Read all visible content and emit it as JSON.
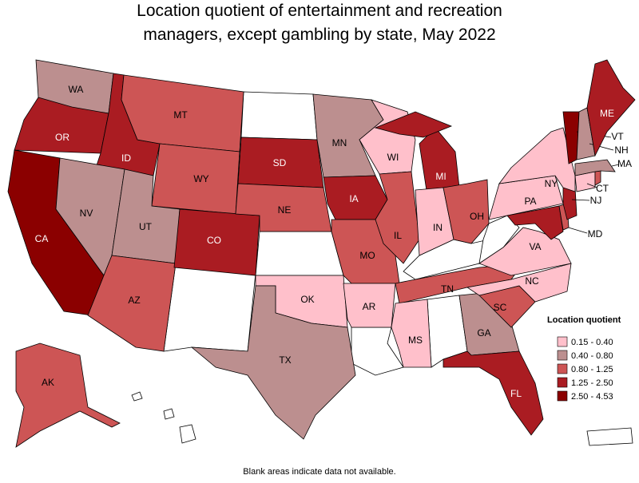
{
  "title": "Location quotient of entertainment and recreation managers, except gambling by state, May 2022",
  "legend": {
    "title": "Location quotient",
    "items": [
      {
        "label": "0.15 - 0.40",
        "color": "#ffc0cb"
      },
      {
        "label": "0.40 - 0.80",
        "color": "#bc8f8f"
      },
      {
        "label": "0.80 - 1.25",
        "color": "#cd5555"
      },
      {
        "label": "1.25 - 2.50",
        "color": "#aa1c22"
      },
      {
        "label": "2.50 - 4.53",
        "color": "#8b0000"
      }
    ]
  },
  "states": [
    {
      "label": "WA",
      "class": 1
    },
    {
      "label": "OR",
      "class": 3
    },
    {
      "label": "CA",
      "class": 4
    },
    {
      "label": "ID",
      "class": 3
    },
    {
      "label": "NV",
      "class": 1
    },
    {
      "label": "MT",
      "class": 2
    },
    {
      "label": "WY",
      "class": 2
    },
    {
      "label": "UT",
      "class": 1
    },
    {
      "label": "AZ",
      "class": 2
    },
    {
      "label": "CO",
      "class": 3
    },
    {
      "label": "SD",
      "class": 3
    },
    {
      "label": "NE",
      "class": 2
    },
    {
      "label": "OK",
      "class": 0
    },
    {
      "label": "TX",
      "class": 1
    },
    {
      "label": "MN",
      "class": 1
    },
    {
      "label": "IA",
      "class": 3
    },
    {
      "label": "MO",
      "class": 2
    },
    {
      "label": "AR",
      "class": 0
    },
    {
      "label": "WI",
      "class": 0
    },
    {
      "label": "IL",
      "class": 2
    },
    {
      "label": "MI",
      "class": 3
    },
    {
      "label": "IN",
      "class": 0
    },
    {
      "label": "OH",
      "class": 2
    },
    {
      "label": "TN",
      "class": 2
    },
    {
      "label": "MS",
      "class": 0
    },
    {
      "label": "GA",
      "class": 1
    },
    {
      "label": "FL",
      "class": 3
    },
    {
      "label": "SC",
      "class": 2
    },
    {
      "label": "NC",
      "class": 0
    },
    {
      "label": "VA",
      "class": 0
    },
    {
      "label": "PA",
      "class": 0
    },
    {
      "label": "MD",
      "class": 3
    },
    {
      "class": 2
    },
    {
      "label": "NJ",
      "class": 3
    },
    {
      "label": "NY",
      "class": 0
    },
    {
      "label": "CT",
      "class": 0
    },
    {
      "class": 2
    },
    {
      "label": "MA",
      "class": 1
    },
    {
      "label": "VT",
      "class": 4
    },
    {
      "label": "NH",
      "class": 1
    },
    {
      "label": "ME",
      "class": 3
    },
    {
      "label": "AK",
      "class": 2
    }
  ],
  "footnote": "Blank areas indicate data not available."
}
